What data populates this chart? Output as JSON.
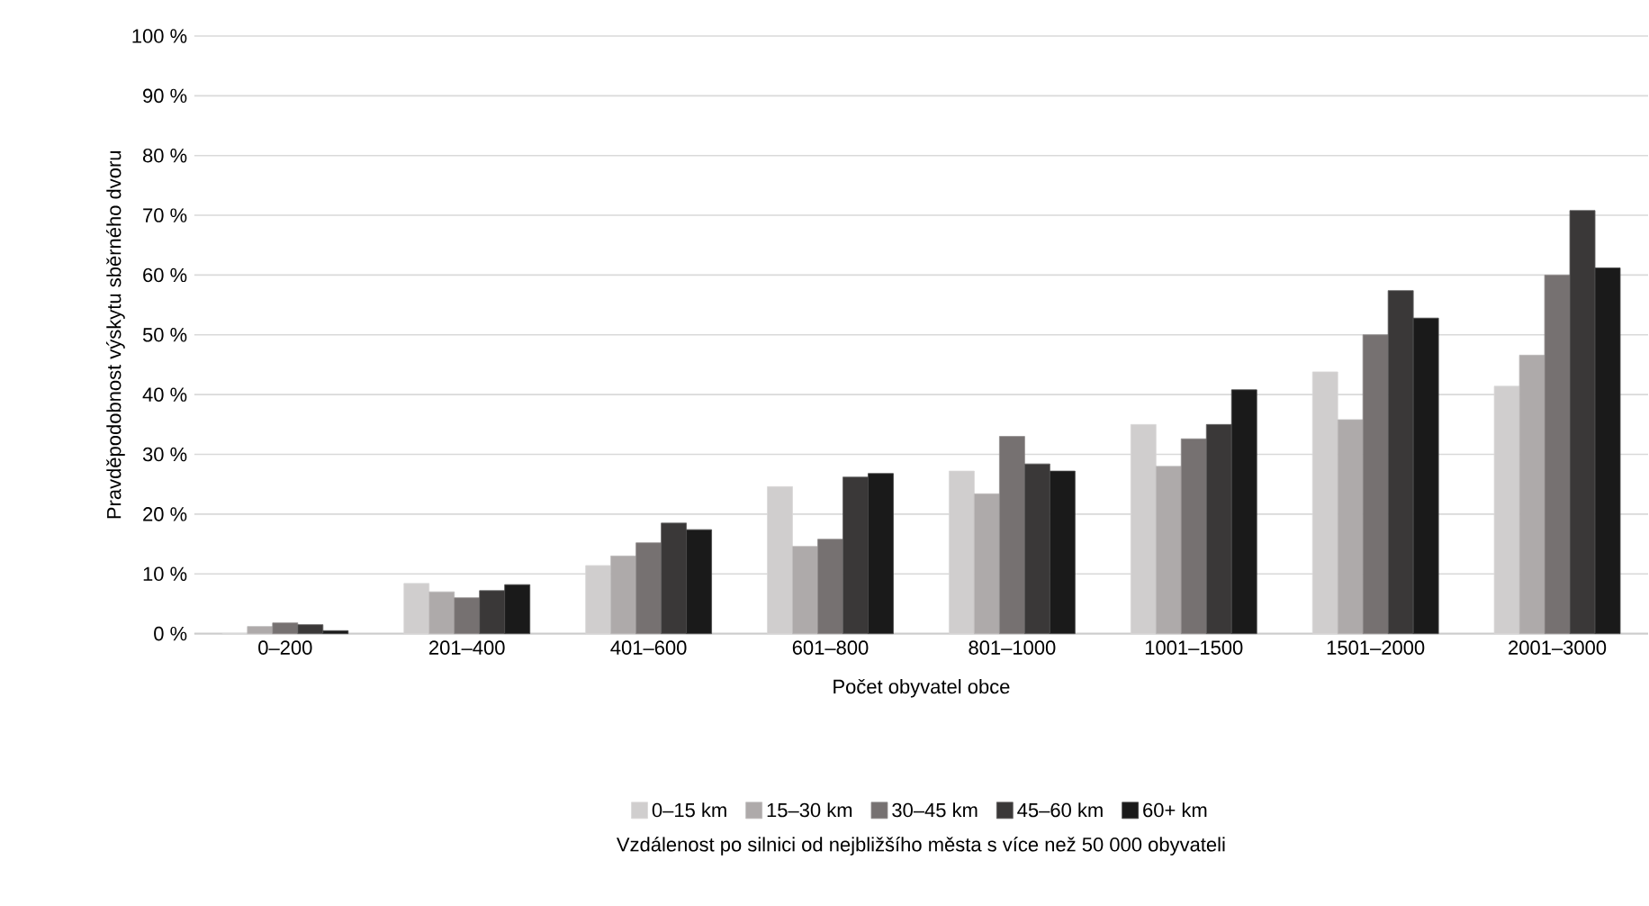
{
  "chart_data": {
    "type": "bar",
    "xlabel": "Počet obyvatel obce",
    "ylabel": "Pravděpodobnost výskytu sběrného dvoru",
    "categories": [
      "0–200",
      "201–400",
      "401–600",
      "601–800",
      "801–1000",
      "1001–1500",
      "1501–2000",
      "2001–3000"
    ],
    "series": [
      {
        "name": "0–15 km",
        "color": "#d0cece",
        "values": [
          0,
          8.4,
          11.4,
          24.6,
          27.2,
          35,
          43.8,
          41.4
        ]
      },
      {
        "name": "15–30 km",
        "color": "#aeaaaa",
        "values": [
          1.2,
          7,
          13,
          14.6,
          23.4,
          28,
          35.8,
          46.6
        ]
      },
      {
        "name": "30–45 km",
        "color": "#767171",
        "values": [
          1.8,
          6,
          15.2,
          15.8,
          33,
          32.6,
          50,
          60
        ]
      },
      {
        "name": "45–60 km",
        "color": "#3a3838",
        "values": [
          1.5,
          7.2,
          18.5,
          26.2,
          28.4,
          35,
          57.4,
          70.8
        ]
      },
      {
        "name": "60+ km",
        "color": "#1a1a1a",
        "values": [
          0.5,
          8.2,
          17.4,
          26.8,
          27.2,
          40.8,
          52.8,
          61.2
        ]
      }
    ],
    "ylim": [
      0,
      100
    ],
    "yticks": [
      {
        "value": 0,
        "label": "0 %"
      },
      {
        "value": 10,
        "label": "10 %"
      },
      {
        "value": 20,
        "label": "20 %"
      },
      {
        "value": 30,
        "label": "30 %"
      },
      {
        "value": 40,
        "label": "40 %"
      },
      {
        "value": 50,
        "label": "50 %"
      },
      {
        "value": 60,
        "label": "60 %"
      },
      {
        "value": 70,
        "label": "70 %"
      },
      {
        "value": 80,
        "label": "80 %"
      },
      {
        "value": 90,
        "label": "90 %"
      },
      {
        "value": 100,
        "label": "100 %"
      }
    ],
    "grid": "y",
    "legend": "bottom",
    "annotations": [
      "Vzdálenost po silnici od nejbližšího města s více než 50 000 obyvateli"
    ]
  }
}
